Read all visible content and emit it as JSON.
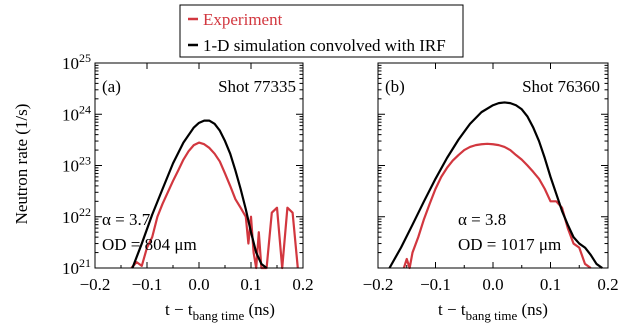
{
  "legend": {
    "entries": [
      {
        "label": "Experiment",
        "color": "#d2373f"
      },
      {
        "label": "1-D simulation convolved with IRF",
        "color": "#000000"
      }
    ]
  },
  "y_axis_label": "Neutron rate (1/s)",
  "chart_data": [
    {
      "type": "line",
      "panel": "(a)",
      "shot": "Shot 77335",
      "alpha_text": "α = 3.7",
      "od_text": "OD = 804 μm",
      "xlabel": "t − t_bang time (ns)",
      "ylabel": "Neutron rate (1/s)",
      "x_scale": "linear",
      "y_scale": "log",
      "xlim": [
        -0.2,
        0.2
      ],
      "ylim": [
        1e+21,
        1e+25
      ],
      "xticks": [
        -0.2,
        -0.1,
        0.0,
        0.1,
        0.2
      ],
      "xtick_labels": [
        "−0.2",
        "−0.1",
        "0.0",
        "0.1",
        "0.2"
      ],
      "ytick_exponents": [
        21,
        22,
        23,
        24,
        25
      ],
      "series": [
        {
          "name": "Experiment",
          "color": "#d2373f",
          "x": [
            -0.13,
            -0.12,
            -0.11,
            -0.1,
            -0.09,
            -0.08,
            -0.07,
            -0.06,
            -0.05,
            -0.04,
            -0.03,
            -0.02,
            -0.01,
            0.0,
            0.01,
            0.02,
            0.03,
            0.04,
            0.05,
            0.06,
            0.07,
            0.08,
            0.09,
            0.095,
            0.1,
            0.105,
            0.11,
            0.115,
            0.12,
            0.13,
            0.14,
            0.15,
            0.16,
            0.17,
            0.18,
            0.19
          ],
          "y": [
            1e+21,
            1.3e+21,
            1.1e+21,
            2.5e+21,
            4e+21,
            1e+22,
            1.8e+22,
            3e+22,
            5e+22,
            8e+22,
            1.3e+23,
            1.9e+23,
            2.5e+23,
            2.8e+23,
            2.6e+23,
            2.2e+23,
            1.7e+23,
            1.2e+23,
            7e+22,
            4e+22,
            2.2e+22,
            1.5e+22,
            1e+22,
            3e+21,
            1e+22,
            2e+21,
            1e+21,
            5e+21,
            1e+21,
            1e+21,
            1.2e+22,
            1.5e+22,
            1e+21,
            1.5e+22,
            1.2e+22,
            1e+21
          ]
        },
        {
          "name": "1-D simulation convolved with IRF",
          "color": "#000000",
          "x": [
            -0.128,
            -0.11,
            -0.09,
            -0.07,
            -0.05,
            -0.03,
            -0.01,
            0.0,
            0.01,
            0.02,
            0.03,
            0.04,
            0.05,
            0.06,
            0.07,
            0.08,
            0.09,
            0.1,
            0.11,
            0.12,
            0.13
          ],
          "y": [
            1e+21,
            3e+21,
            1.1e+22,
            3.5e+22,
            1.1e+23,
            2.8e+23,
            5.5e+23,
            6.8e+23,
            7.5e+23,
            7.5e+23,
            6.5e+23,
            4.8e+23,
            3e+23,
            1.7e+23,
            8e+22,
            3.5e+22,
            1.4e+22,
            5e+21,
            2e+21,
            1.2e+21,
            1e+21
          ]
        }
      ]
    },
    {
      "type": "line",
      "panel": "(b)",
      "shot": "Shot 76360",
      "alpha_text": "α = 3.8",
      "od_text": "OD = 1017 μm",
      "xlabel": "t − t_bang time (ns)",
      "x_scale": "linear",
      "y_scale": "log",
      "xlim": [
        -0.2,
        0.2
      ],
      "ylim": [
        1e+21,
        1e+25
      ],
      "xticks": [
        -0.2,
        -0.1,
        0.0,
        0.1,
        0.2
      ],
      "xtick_labels": [
        "−0.2",
        "−0.1",
        "0.0",
        "0.1",
        "0.2"
      ],
      "ytick_exponents": [
        21,
        22,
        23,
        24,
        25
      ],
      "series": [
        {
          "name": "Experiment",
          "color": "#d2373f",
          "x": [
            -0.155,
            -0.15,
            -0.145,
            -0.14,
            -0.13,
            -0.12,
            -0.11,
            -0.1,
            -0.09,
            -0.08,
            -0.07,
            -0.06,
            -0.05,
            -0.04,
            -0.03,
            -0.02,
            -0.01,
            0.0,
            0.01,
            0.02,
            0.03,
            0.04,
            0.05,
            0.06,
            0.07,
            0.08,
            0.09,
            0.1,
            0.11,
            0.12,
            0.13,
            0.14,
            0.15,
            0.16,
            0.17
          ],
          "y": [
            1e+21,
            1.5e+21,
            1e+21,
            2e+21,
            4e+21,
            9e+21,
            1.8e+22,
            3.5e+22,
            6e+22,
            9e+22,
            1.25e+23,
            1.6e+23,
            2e+23,
            2.3e+23,
            2.5e+23,
            2.6e+23,
            2.65e+23,
            2.6e+23,
            2.5e+23,
            2.3e+23,
            2e+23,
            1.6e+23,
            1.3e+23,
            1e+23,
            7.5e+22,
            5.5e+22,
            3.5e+22,
            2e+22,
            2e+22,
            1.5e+22,
            6e+21,
            3e+21,
            2.5e+21,
            1.2e+21,
            1e+21
          ]
        },
        {
          "name": "1-D simulation convolved with IRF",
          "color": "#000000",
          "x": [
            -0.18,
            -0.16,
            -0.14,
            -0.12,
            -0.1,
            -0.08,
            -0.06,
            -0.04,
            -0.02,
            0.0,
            0.01,
            0.02,
            0.03,
            0.04,
            0.05,
            0.06,
            0.07,
            0.08,
            0.09,
            0.1,
            0.11,
            0.12,
            0.13,
            0.14,
            0.15,
            0.16,
            0.17,
            0.18,
            0.19
          ],
          "y": [
            1e+21,
            2.5e+21,
            7e+21,
            2e+22,
            5.5e+22,
            1.4e+23,
            3.2e+23,
            6.5e+23,
            1.1e+24,
            1.5e+24,
            1.65e+24,
            1.7e+24,
            1.65e+24,
            1.5e+24,
            1.25e+24,
            9e+23,
            5.5e+23,
            3e+23,
            1.4e+23,
            6e+22,
            2.8e+22,
            1.3e+22,
            7e+21,
            4e+21,
            3e+21,
            2.5e+21,
            1.8e+21,
            1.2e+21,
            1e+21
          ]
        }
      ]
    }
  ]
}
